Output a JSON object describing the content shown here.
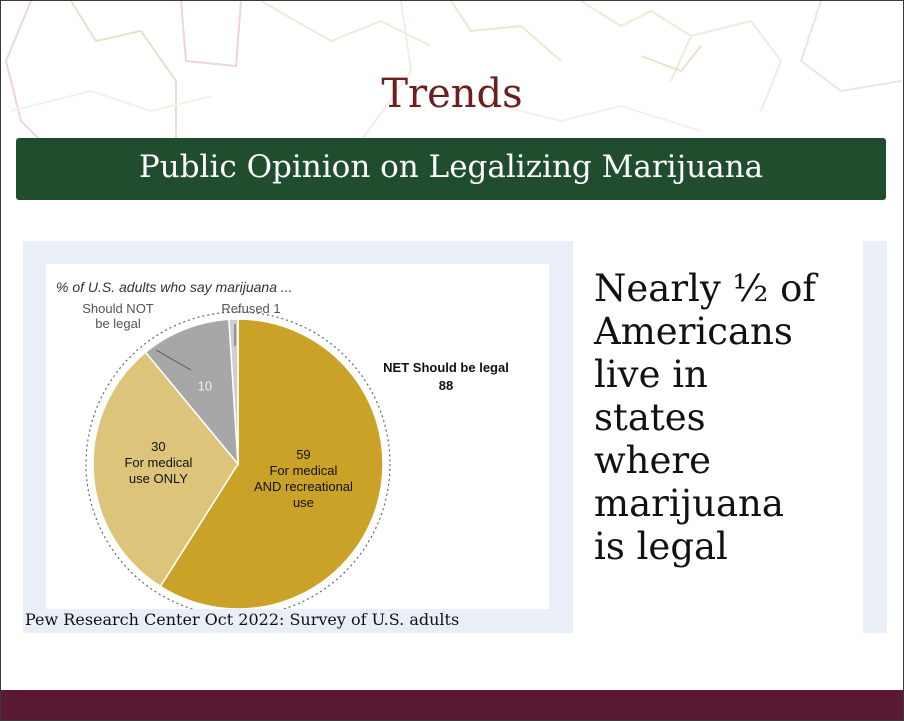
{
  "slide": {
    "title": "Trends",
    "banner": "Public Opinion on Legalizing Marijuana",
    "source": "Pew Research Center Oct 2022: Survey of U.S. adults",
    "side_text": {
      "line1": "Nearly ½ of",
      "line2": "Americans",
      "line3": "live in",
      "line4": "states",
      "line5": "where",
      "line6": "marijuana",
      "line7": "is legal"
    }
  },
  "colors": {
    "title": "#6d1f1f",
    "banner": "#1f4d2e",
    "footer": "#5a1a33",
    "slice_medical_recreational": "#c9a227",
    "slice_medical_only": "#dcc57a",
    "slice_not_legal": "#a7a7a7",
    "slice_refused": "#cfcfcf"
  },
  "chart_data": {
    "type": "pie",
    "subtitle": "% of U.S. adults who say marijuana ...",
    "slices": [
      {
        "value": 59,
        "value_label": "59",
        "label_lines": [
          "For medical",
          "AND recreational",
          "use"
        ],
        "color": "#c9a227"
      },
      {
        "value": 30,
        "value_label": "30",
        "label_lines": [
          "For medical",
          "use ONLY"
        ],
        "color": "#dcc57a"
      },
      {
        "value": 10,
        "value_label": "10",
        "label_lines": [
          "Should NOT",
          "be legal"
        ],
        "color": "#a7a7a7"
      },
      {
        "value": 1,
        "value_label": "Refused 1",
        "label_lines": [],
        "color": "#cfcfcf"
      }
    ],
    "net_label": "NET Should be legal",
    "net_value": "88"
  }
}
